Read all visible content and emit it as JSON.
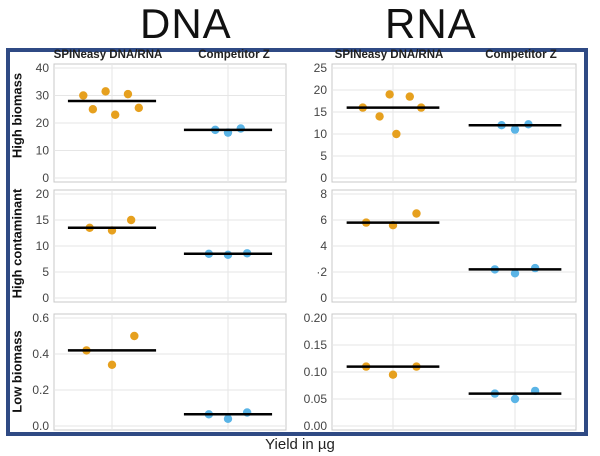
{
  "column_titles": [
    "DNA",
    "RNA"
  ],
  "row_labels": [
    "High biomass",
    "High contaminant",
    "Low biomass"
  ],
  "xlabel": "Yield in µg",
  "colors": {
    "spineasy": "#E6A01E",
    "competitor": "#5AB4E6",
    "frame": "#2f4a84",
    "median": "#000000"
  },
  "chart_data": [
    {
      "type": "scatter",
      "panel": "DNA / High biomass",
      "categories": [
        "SPINeasy DNA/RNA",
        "Competitor Z"
      ],
      "ylim": [
        0,
        40
      ],
      "yticks": [
        0,
        10,
        20,
        30,
        40
      ],
      "ytick_labels": [
        "0",
        "10",
        "20",
        "30",
        "40"
      ],
      "series": [
        {
          "points": [
            [
              -0.45,
              30
            ],
            [
              -0.3,
              25
            ],
            [
              -0.1,
              31.5
            ],
            [
              0.05,
              23
            ],
            [
              0.25,
              30.5
            ],
            [
              0.42,
              25.5
            ]
          ],
          "median": 28
        },
        {
          "points": [
            [
              -0.2,
              17.5
            ],
            [
              0.0,
              16.5
            ],
            [
              0.2,
              18
            ]
          ],
          "median": 17.5
        }
      ]
    },
    {
      "type": "scatter",
      "panel": "RNA / High biomass",
      "categories": [
        "SPINeasy DNA/RNA",
        "Competitor Z"
      ],
      "ylim": [
        0,
        25
      ],
      "yticks": [
        0,
        5,
        10,
        15,
        20,
        25
      ],
      "ytick_labels": [
        "0",
        "5",
        "10",
        "15",
        "20",
        "25"
      ],
      "series": [
        {
          "points": [
            [
              -0.45,
              16
            ],
            [
              -0.2,
              14
            ],
            [
              -0.05,
              19
            ],
            [
              0.05,
              10
            ],
            [
              0.25,
              18.5
            ],
            [
              0.42,
              16
            ]
          ],
          "median": 16
        },
        {
          "points": [
            [
              -0.2,
              12
            ],
            [
              0.0,
              11
            ],
            [
              0.2,
              12.2
            ]
          ],
          "median": 12
        }
      ]
    },
    {
      "type": "scatter",
      "panel": "DNA / High contaminant",
      "categories": [
        "SPINeasy DNA/RNA",
        "Competitor Z"
      ],
      "ylim": [
        0,
        20
      ],
      "yticks": [
        0,
        5,
        10,
        15,
        20
      ],
      "ytick_labels": [
        "0",
        "5",
        "10",
        "15",
        "20"
      ],
      "series": [
        {
          "points": [
            [
              -0.35,
              13.5
            ],
            [
              0.0,
              13
            ],
            [
              0.3,
              15
            ]
          ],
          "median": 13.5
        },
        {
          "points": [
            [
              -0.3,
              8.5
            ],
            [
              0.0,
              8.3
            ],
            [
              0.3,
              8.6
            ]
          ],
          "median": 8.5
        }
      ]
    },
    {
      "type": "scatter",
      "panel": "RNA / High contaminant",
      "categories": [
        "SPINeasy DNA/RNA",
        "Competitor Z"
      ],
      "ylim": [
        0,
        8
      ],
      "yticks": [
        0,
        2,
        4,
        6,
        8
      ],
      "ytick_labels": [
        "0",
        "·2",
        "4",
        "6",
        "8"
      ],
      "series": [
        {
          "points": [
            [
              -0.4,
              5.8
            ],
            [
              0.0,
              5.6
            ],
            [
              0.35,
              6.5
            ]
          ],
          "median": 5.8
        },
        {
          "points": [
            [
              -0.3,
              2.2
            ],
            [
              0.0,
              1.9
            ],
            [
              0.3,
              2.3
            ]
          ],
          "median": 2.2
        }
      ]
    },
    {
      "type": "scatter",
      "panel": "DNA / Low biomass",
      "categories": [
        "SPINeasy DNA/RNA",
        "Competitor Z"
      ],
      "ylim": [
        0,
        0.6
      ],
      "yticks": [
        0,
        0.2,
        0.4,
        0.6
      ],
      "ytick_labels": [
        "0.0",
        "0.2",
        "0.4",
        "0.6"
      ],
      "series": [
        {
          "points": [
            [
              -0.4,
              0.42
            ],
            [
              0.0,
              0.34
            ],
            [
              0.35,
              0.5
            ]
          ],
          "median": 0.42
        },
        {
          "points": [
            [
              -0.3,
              0.065
            ],
            [
              0.0,
              0.04
            ],
            [
              0.3,
              0.075
            ]
          ],
          "median": 0.065
        }
      ]
    },
    {
      "type": "scatter",
      "panel": "RNA / Low biomass",
      "categories": [
        "SPINeasy DNA/RNA",
        "Competitor Z"
      ],
      "ylim": [
        0,
        0.2
      ],
      "yticks": [
        0,
        0.05,
        0.1,
        0.15,
        0.2
      ],
      "ytick_labels": [
        "0.00",
        "0.05",
        "0.10",
        "0.15",
        "0.20"
      ],
      "series": [
        {
          "points": [
            [
              -0.4,
              0.11
            ],
            [
              0.0,
              0.095
            ],
            [
              0.35,
              0.11
            ]
          ],
          "median": 0.11
        },
        {
          "points": [
            [
              -0.3,
              0.06
            ],
            [
              0.0,
              0.05
            ],
            [
              0.3,
              0.065
            ]
          ],
          "median": 0.06
        }
      ]
    }
  ]
}
